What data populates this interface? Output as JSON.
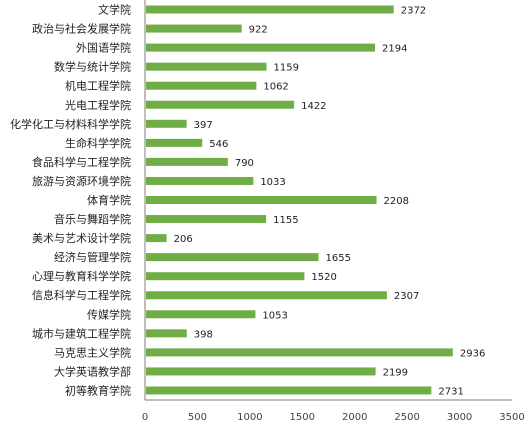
{
  "chart_data": {
    "type": "bar",
    "orientation": "horizontal",
    "title": "",
    "xlabel": "",
    "ylabel": "",
    "categories": [
      "文学院",
      "政治与社会发展学院",
      "外国语学院",
      "数学与统计学院",
      "机电工程学院",
      "光电工程学院",
      "化学化工与材料科学学院",
      "生命科学学院",
      "食品科学与工程学院",
      "旅游与资源环境学院",
      "体育学院",
      "音乐与舞蹈学院",
      "美术与艺术设计学院",
      "经济与管理学院",
      "心理与教育科学学院",
      "信息科学与工程学院",
      "传媒学院",
      "城市与建筑工程学院",
      "马克思主义学院",
      "大学英语教学部",
      "初等教育学院"
    ],
    "values": [
      2372,
      922,
      2194,
      1159,
      1062,
      1422,
      397,
      546,
      790,
      1033,
      2208,
      1155,
      206,
      1655,
      1520,
      2307,
      1053,
      398,
      2936,
      2199,
      2731
    ],
    "value_labels": [
      "2372",
      "922",
      "2194",
      "1159",
      "1062",
      "1422",
      "397",
      "546",
      "790",
      "1033",
      "2208",
      "1155",
      "206",
      "1655",
      "1520",
      "2307",
      "1053",
      "398",
      "2936",
      "2199",
      "2731"
    ],
    "xlim": [
      0,
      3500
    ],
    "x_ticks": [
      0,
      500,
      1000,
      1500,
      2000,
      2500,
      3000,
      3500
    ],
    "x_tick_labels": [
      "0",
      "500",
      "1000",
      "1500",
      "2000",
      "2500",
      "3000",
      "3500"
    ],
    "grid": false,
    "legend": "none",
    "bar_color": "#70ad47",
    "axis_color": "#7f7f7f"
  }
}
